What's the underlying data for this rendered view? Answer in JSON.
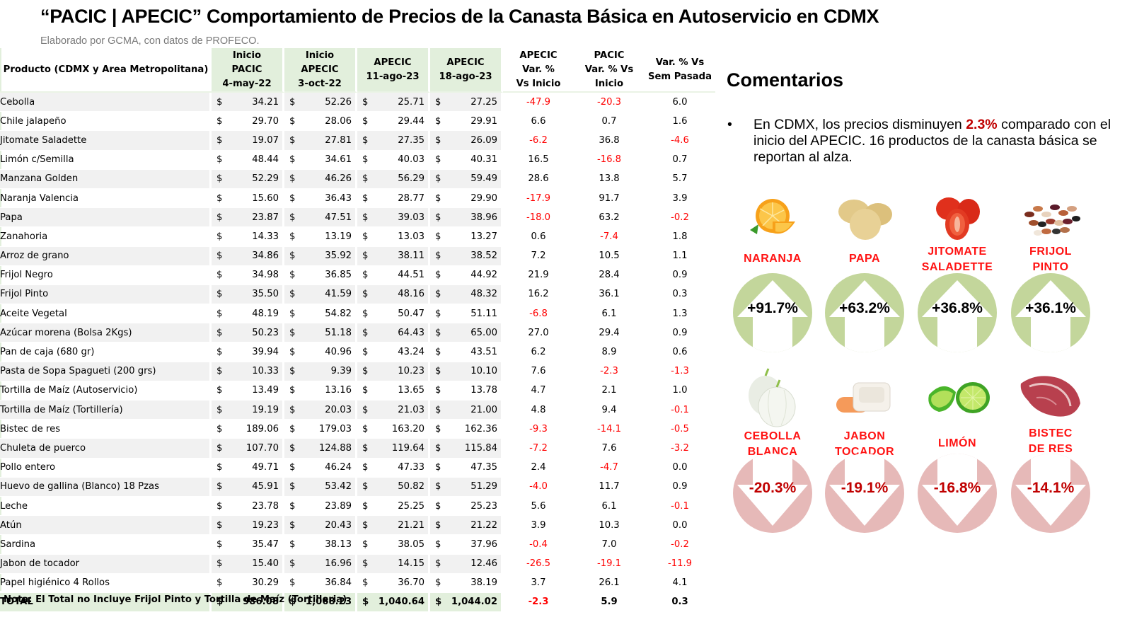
{
  "header": {
    "title": "“PACIC | APECIC” Comportamiento de Precios de la Canasta Básica en Autoservicio en CDMX",
    "subtitle": "Elaborado por GCMA, con datos de PROFECO."
  },
  "table": {
    "columns": [
      "Producto (CDMX y Area Metropolitana)",
      "Inicio PACIC 4-may-22",
      "Inicio APECIC 3-oct-22",
      "APECIC 11-ago-23",
      "APECIC 18-ago-23",
      "APECIC Var. % Vs Inicio",
      "PACIC Var. % Vs Inicio",
      "Var. % Vs Sem Pasada"
    ],
    "header_lines": {
      "product": "Producto (CDMX y Area Metropolitana)",
      "c1": [
        "Inicio",
        "PACIC",
        "4-may-22"
      ],
      "c2": [
        "Inicio",
        "APECIC",
        "3-oct-22"
      ],
      "c3": [
        "APECIC",
        "11-ago-23"
      ],
      "c4": [
        "APECIC",
        "18-ago-23"
      ],
      "c5": [
        "APECIC",
        "Var. %",
        "Vs  Inicio"
      ],
      "c6": [
        "PACIC",
        "Var. % Vs",
        "Inicio"
      ],
      "c7": [
        "Var. % Vs",
        "Sem Pasada"
      ]
    },
    "currency_symbol": "$",
    "rows": [
      {
        "product": "Cebolla",
        "pacic": "34.21",
        "apecic": "52.26",
        "w1": "25.71",
        "w2": "27.25",
        "var_apecic": "-47.9",
        "var_pacic": "-20.3",
        "var_sem": "6.0"
      },
      {
        "product": "Chile jalapeño",
        "pacic": "29.70",
        "apecic": "28.06",
        "w1": "29.44",
        "w2": "29.91",
        "var_apecic": "6.6",
        "var_pacic": "0.7",
        "var_sem": "1.6"
      },
      {
        "product": "Jitomate Saladette",
        "pacic": "19.07",
        "apecic": "27.81",
        "w1": "27.35",
        "w2": "26.09",
        "var_apecic": "-6.2",
        "var_pacic": "36.8",
        "var_sem": "-4.6"
      },
      {
        "product": "Limón c/Semilla",
        "pacic": "48.44",
        "apecic": "34.61",
        "w1": "40.03",
        "w2": "40.31",
        "var_apecic": "16.5",
        "var_pacic": "-16.8",
        "var_sem": "0.7"
      },
      {
        "product": "Manzana Golden",
        "pacic": "52.29",
        "apecic": "46.26",
        "w1": "56.29",
        "w2": "59.49",
        "var_apecic": "28.6",
        "var_pacic": "13.8",
        "var_sem": "5.7"
      },
      {
        "product": "Naranja Valencia",
        "pacic": "15.60",
        "apecic": "36.43",
        "w1": "28.77",
        "w2": "29.90",
        "var_apecic": "-17.9",
        "var_pacic": "91.7",
        "var_sem": "3.9"
      },
      {
        "product": "Papa",
        "pacic": "23.87",
        "apecic": "47.51",
        "w1": "39.03",
        "w2": "38.96",
        "var_apecic": "-18.0",
        "var_pacic": "63.2",
        "var_sem": "-0.2"
      },
      {
        "product": "Zanahoria",
        "pacic": "14.33",
        "apecic": "13.19",
        "w1": "13.03",
        "w2": "13.27",
        "var_apecic": "0.6",
        "var_pacic": "-7.4",
        "var_sem": "1.8"
      },
      {
        "product": "Arroz de grano",
        "pacic": "34.86",
        "apecic": "35.92",
        "w1": "38.11",
        "w2": "38.52",
        "var_apecic": "7.2",
        "var_pacic": "10.5",
        "var_sem": "1.1"
      },
      {
        "product": "Frijol Negro",
        "pacic": "34.98",
        "apecic": "36.85",
        "w1": "44.51",
        "w2": "44.92",
        "var_apecic": "21.9",
        "var_pacic": "28.4",
        "var_sem": "0.9"
      },
      {
        "product": "Frijol Pinto",
        "pacic": "35.50",
        "apecic": "41.59",
        "w1": "48.16",
        "w2": "48.32",
        "var_apecic": "16.2",
        "var_pacic": "36.1",
        "var_sem": "0.3"
      },
      {
        "product": "Aceite Vegetal",
        "pacic": "48.19",
        "apecic": "54.82",
        "w1": "50.47",
        "w2": "51.11",
        "var_apecic": "-6.8",
        "var_pacic": "6.1",
        "var_sem": "1.3"
      },
      {
        "product": "Azúcar morena (Bolsa 2Kgs)",
        "pacic": "50.23",
        "apecic": "51.18",
        "w1": "64.43",
        "w2": "65.00",
        "var_apecic": "27.0",
        "var_pacic": "29.4",
        "var_sem": "0.9"
      },
      {
        "product": "Pan de caja (680 gr)",
        "pacic": "39.94",
        "apecic": "40.96",
        "w1": "43.24",
        "w2": "43.51",
        "var_apecic": "6.2",
        "var_pacic": "8.9",
        "var_sem": "0.6"
      },
      {
        "product": "Pasta de Sopa Spagueti (200 grs)",
        "pacic": "10.33",
        "apecic": "9.39",
        "w1": "10.23",
        "w2": "10.10",
        "var_apecic": "7.6",
        "var_pacic": "-2.3",
        "var_sem": "-1.3"
      },
      {
        "product": "Tortilla de Maíz (Autoservicio)",
        "pacic": "13.49",
        "apecic": "13.16",
        "w1": "13.65",
        "w2": "13.78",
        "var_apecic": "4.7",
        "var_pacic": "2.1",
        "var_sem": "1.0"
      },
      {
        "product": "Tortilla de Maíz (Tortillería)",
        "pacic": "19.19",
        "apecic": "20.03",
        "w1": "21.03",
        "w2": "21.00",
        "var_apecic": "4.8",
        "var_pacic": "9.4",
        "var_sem": "-0.1"
      },
      {
        "product": "Bistec de res",
        "pacic": "189.06",
        "apecic": "179.03",
        "w1": "163.20",
        "w2": "162.36",
        "var_apecic": "-9.3",
        "var_pacic": "-14.1",
        "var_sem": "-0.5"
      },
      {
        "product": "Chuleta de puerco",
        "pacic": "107.70",
        "apecic": "124.88",
        "w1": "119.64",
        "w2": "115.84",
        "var_apecic": "-7.2",
        "var_pacic": "7.6",
        "var_sem": "-3.2"
      },
      {
        "product": "Pollo entero",
        "pacic": "49.71",
        "apecic": "46.24",
        "w1": "47.33",
        "w2": "47.35",
        "var_apecic": "2.4",
        "var_pacic": "-4.7",
        "var_sem": "0.0"
      },
      {
        "product": "Huevo de gallina (Blanco) 18 Pzas",
        "pacic": "45.91",
        "apecic": "53.42",
        "w1": "50.82",
        "w2": "51.29",
        "var_apecic": "-4.0",
        "var_pacic": "11.7",
        "var_sem": "0.9"
      },
      {
        "product": "Leche",
        "pacic": "23.78",
        "apecic": "23.89",
        "w1": "25.25",
        "w2": "25.23",
        "var_apecic": "5.6",
        "var_pacic": "6.1",
        "var_sem": "-0.1"
      },
      {
        "product": "Atún",
        "pacic": "19.23",
        "apecic": "20.43",
        "w1": "21.21",
        "w2": "21.22",
        "var_apecic": "3.9",
        "var_pacic": "10.3",
        "var_sem": "0.0"
      },
      {
        "product": "Sardina",
        "pacic": "35.47",
        "apecic": "38.13",
        "w1": "38.05",
        "w2": "37.96",
        "var_apecic": "-0.4",
        "var_pacic": "7.0",
        "var_sem": "-0.2"
      },
      {
        "product": "Jabon de tocador",
        "pacic": "15.40",
        "apecic": "16.96",
        "w1": "14.15",
        "w2": "12.46",
        "var_apecic": "-26.5",
        "var_pacic": "-19.1",
        "var_sem": "-11.9"
      },
      {
        "product": "Papel higiénico 4 Rollos",
        "pacic": "30.29",
        "apecic": "36.84",
        "w1": "36.70",
        "w2": "38.19",
        "var_apecic": "3.7",
        "var_pacic": "26.1",
        "var_sem": "4.1"
      }
    ],
    "total": {
      "product": "TOTAL",
      "pacic": "986.08",
      "apecic": "1,068.23",
      "w1": "1,040.64",
      "w2": "1,044.02",
      "var_apecic": "-2.3",
      "var_pacic": "5.9",
      "var_sem": "0.3"
    },
    "note": "Nota: El Total no Incluye Frijol Pinto y Tortilla de Maíz (Tortilleria)"
  },
  "comments": {
    "title": "Comentarios",
    "bullet_symbol": "•",
    "text_before": "En CDMX, los precios disminuyen ",
    "highlight": "2.3%",
    "text_after": " comparado con el inicio del APECIC. 16 productos de la canasta básica se reportan al alza."
  },
  "colors": {
    "header_green": "#e2efdc",
    "negative_red": "#ff0000",
    "label_red": "#ff1212",
    "up_circle": "#c3d69b",
    "down_circle": "#e6b9b8",
    "down_text": "#c00000"
  },
  "highlights": {
    "up": [
      {
        "label_lines": [
          "NARANJA"
        ],
        "value": "+91.7%",
        "icon": "orange-icon"
      },
      {
        "label_lines": [
          "PAPA"
        ],
        "value": "+63.2%",
        "icon": "potato-icon"
      },
      {
        "label_lines": [
          "JITOMATE",
          "SALADETTE"
        ],
        "value": "+36.8%",
        "icon": "tomato-icon"
      },
      {
        "label_lines": [
          "FRIJOL",
          "PINTO"
        ],
        "value": "+36.1%",
        "icon": "beans-icon"
      }
    ],
    "down": [
      {
        "label_lines": [
          "CEBOLLA",
          "BLANCA"
        ],
        "value": "-20.3%",
        "icon": "onion-icon"
      },
      {
        "label_lines": [
          "JABON",
          "TOCADOR"
        ],
        "value": "-19.1%",
        "icon": "soap-icon"
      },
      {
        "label_lines": [
          "LIMÓN"
        ],
        "value": "-16.8%",
        "icon": "lime-icon"
      },
      {
        "label_lines": [
          "BISTEC",
          "DE RES"
        ],
        "value": "-14.1%",
        "icon": "steak-icon"
      }
    ]
  }
}
